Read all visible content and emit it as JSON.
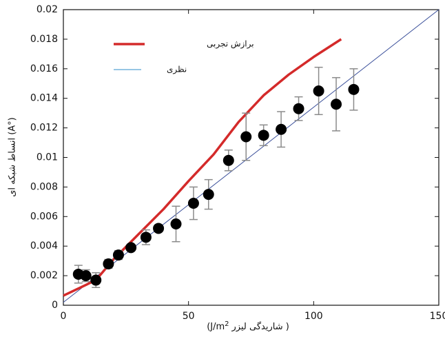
{
  "chart_data": {
    "type": "scatter",
    "xlabel": "(J/m",
    "xlabel_sup": "2",
    "xlabel_rtl": "شاریدگی لیزر )",
    "ylabel": "انساط شبکه ای  (A°)",
    "xlim": [
      0,
      150
    ],
    "ylim": [
      0,
      0.02
    ],
    "xticks": [
      0,
      50,
      100,
      150
    ],
    "xtick_labels": [
      "0",
      "50",
      "100",
      "150"
    ],
    "yticks": [
      0,
      0.002,
      0.004,
      0.006,
      0.008,
      0.01,
      0.012,
      0.014,
      0.016,
      0.018,
      0.02
    ],
    "ytick_labels": [
      "0",
      "0.002",
      "0.004",
      "0.006",
      "0.008",
      "0.01",
      "0.012",
      "0.014",
      "0.016",
      "0.018",
      "0.02"
    ],
    "grid": false,
    "legend_position": "top-left",
    "series": [
      {
        "name": "برازش تجربی",
        "kind": "line",
        "color": "#d42a2a",
        "points": [
          [
            0,
            0.00065
          ],
          [
            13,
            0.0017
          ],
          [
            20,
            0.0031
          ],
          [
            30,
            0.0048
          ],
          [
            40,
            0.0065
          ],
          [
            50,
            0.0084
          ],
          [
            60,
            0.0102
          ],
          [
            70,
            0.0124
          ],
          [
            80,
            0.0142
          ],
          [
            90,
            0.0156
          ],
          [
            100,
            0.0168
          ],
          [
            111,
            0.018
          ]
        ]
      },
      {
        "name": "نظری",
        "kind": "line",
        "color": "#3a4f9a",
        "points": [
          [
            0,
            0.0002
          ],
          [
            150,
            0.02
          ]
        ]
      },
      {
        "name": "",
        "kind": "points",
        "color": "#000000",
        "errorbar_color": "#8a8a8a",
        "x": [
          6,
          9,
          13,
          18,
          22,
          27,
          33,
          38,
          45,
          52,
          58,
          66,
          73,
          80,
          87,
          94,
          102,
          109,
          116
        ],
        "y": [
          0.0021,
          0.002,
          0.0017,
          0.0028,
          0.0034,
          0.0039,
          0.0046,
          0.0052,
          0.0055,
          0.0069,
          0.0075,
          0.0098,
          0.0114,
          0.0115,
          0.0119,
          0.0133,
          0.0145,
          0.0136,
          0.0146
        ],
        "err": [
          0.0006,
          0.0004,
          0.0005,
          0.0003,
          0.0003,
          0.0002,
          0.0005,
          0.0002,
          0.0012,
          0.0011,
          0.001,
          0.0007,
          0.0016,
          0.0007,
          0.0012,
          0.0008,
          0.0016,
          0.0018,
          0.0014
        ]
      }
    ]
  }
}
